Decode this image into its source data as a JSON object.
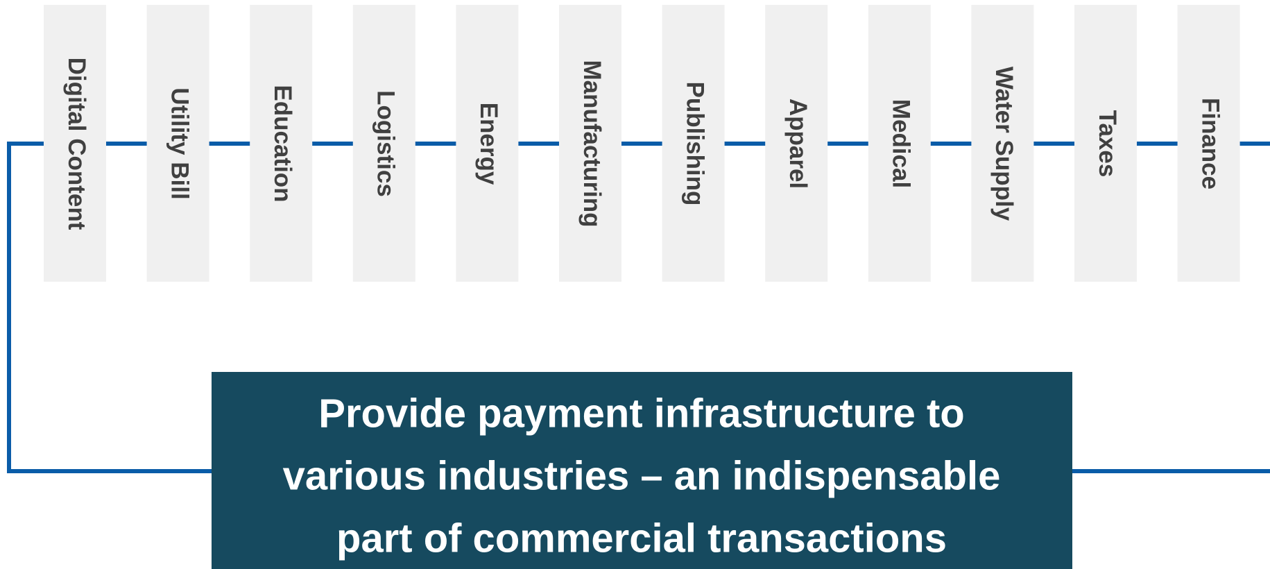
{
  "industries": [
    "Digital Content",
    "Utility Bill",
    "Education",
    "Logistics",
    "Energy",
    "Manufacturing",
    "Publishing",
    "Apparel",
    "Medical",
    "Water Supply",
    "Taxes",
    "Finance"
  ],
  "caption": {
    "lines": [
      "Provide payment infrastructure to",
      "various industries – an indispensable",
      "part of commercial transactions"
    ]
  }
}
